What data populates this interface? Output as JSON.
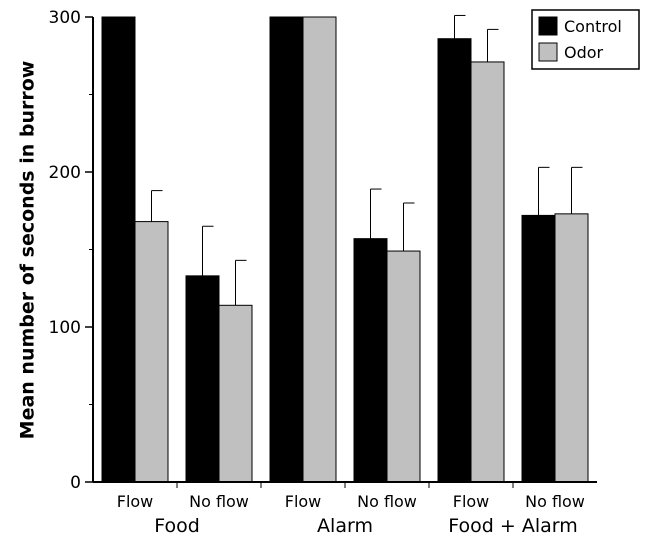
{
  "chart_data": {
    "type": "bar",
    "categories": [
      "Flow",
      "No flow",
      "Flow",
      "No flow",
      "Flow",
      "No flow"
    ],
    "groups": [
      "Food",
      "Alarm",
      "Food + Alarm"
    ],
    "ylabel": "Mean number of seconds in burrow",
    "ylim": [
      0,
      300
    ],
    "yticks": [
      "0",
      "100",
      "200",
      "300"
    ],
    "legend_position": "top-right",
    "series": [
      {
        "name": "Control",
        "color": "#000000",
        "values": [
          300,
          133,
          300,
          157,
          286,
          172
        ],
        "errors": [
          0,
          32,
          0,
          32,
          15,
          31
        ]
      },
      {
        "name": "Odor",
        "color": "#c0c0c0",
        "values": [
          168,
          114,
          300,
          149,
          271,
          173
        ],
        "errors": [
          20,
          29,
          0,
          31,
          21,
          30
        ]
      }
    ]
  }
}
